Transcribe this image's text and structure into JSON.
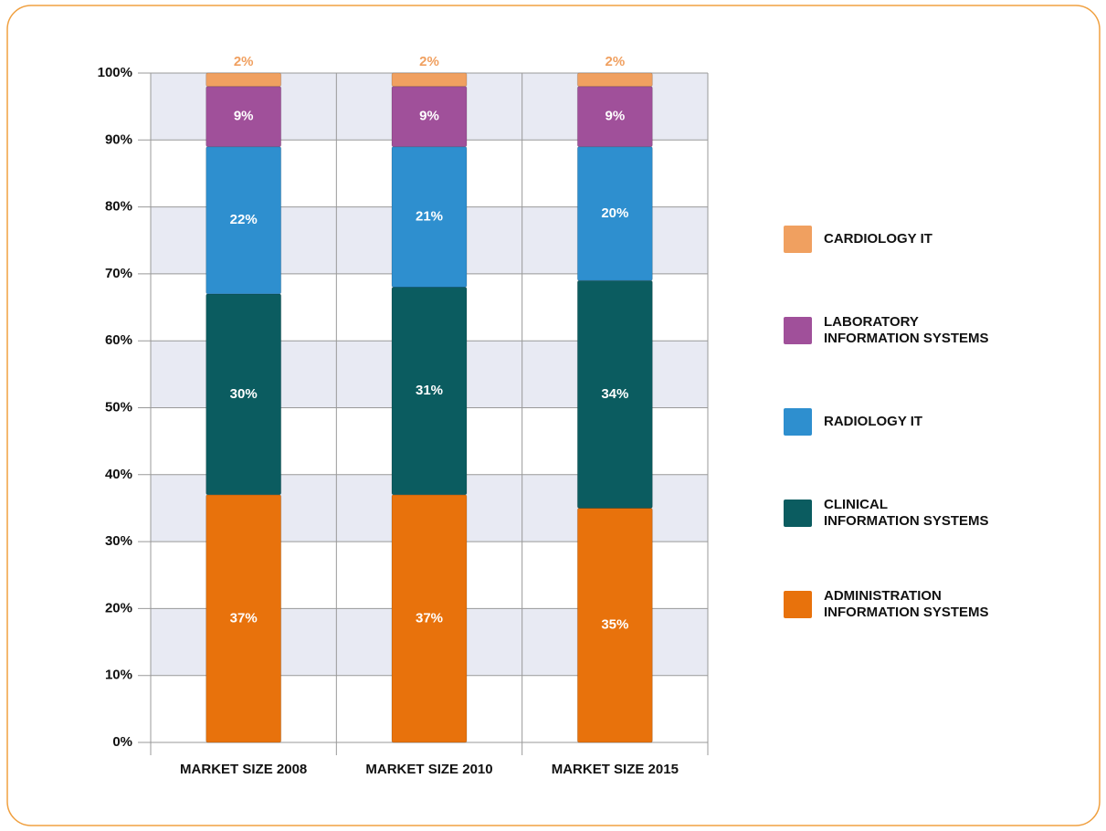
{
  "chart_data": {
    "type": "stacked_bar",
    "categories": [
      "MARKET SIZE 2008",
      "MARKET SIZE 2010",
      "MARKET SIZE 2015"
    ],
    "series": [
      {
        "name": "ADMINISTRATION\nINFORMATION SYSTEMS",
        "color": "#e8720c",
        "values": [
          37,
          37,
          35
        ],
        "value_labels": [
          "37%",
          "37%",
          "35%"
        ]
      },
      {
        "name": "CLINICAL\nINFORMATION SYSTEMS",
        "color": "#0b5c60",
        "values": [
          30,
          31,
          34
        ],
        "value_labels": [
          "30%",
          "31%",
          "34%"
        ]
      },
      {
        "name": "RADIOLOGY IT",
        "color": "#2e8fcf",
        "values": [
          22,
          21,
          20
        ],
        "value_labels": [
          "22%",
          "21%",
          "20%"
        ]
      },
      {
        "name": "LABORATORY\nINFORMATION SYSTEMS",
        "color": "#a0509a",
        "values": [
          9,
          9,
          9
        ],
        "value_labels": [
          "9%",
          "9%",
          "9%"
        ]
      },
      {
        "name": "CARDIOLOGY IT",
        "color": "#f0a060",
        "values": [
          2,
          2,
          2
        ],
        "value_labels": [
          "2%",
          "2%",
          "2%"
        ]
      }
    ],
    "ylim": [
      0,
      100
    ],
    "yticks": [
      {
        "value": 0,
        "label": "0%"
      },
      {
        "value": 10,
        "label": "10%"
      },
      {
        "value": 20,
        "label": "20%"
      },
      {
        "value": 30,
        "label": "30%"
      },
      {
        "value": 40,
        "label": "40%"
      },
      {
        "value": 50,
        "label": "50%"
      },
      {
        "value": 60,
        "label": "60%"
      },
      {
        "value": 70,
        "label": "70%"
      },
      {
        "value": 80,
        "label": "80%"
      },
      {
        "value": 90,
        "label": "90%"
      },
      {
        "value": 100,
        "label": "100%"
      }
    ],
    "grid": true,
    "legend": "right"
  }
}
